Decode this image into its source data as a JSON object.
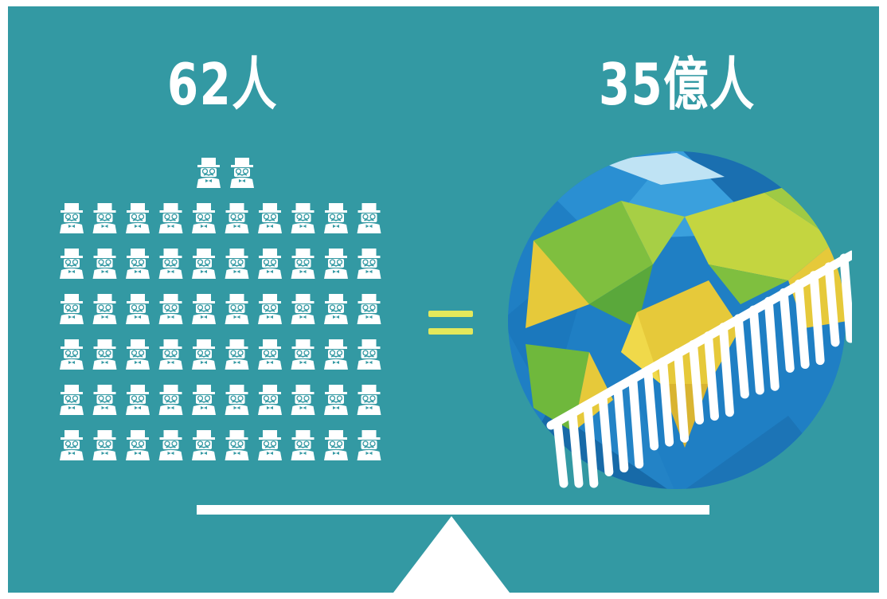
{
  "header": {
    "left_label": "62人",
    "right_label": "35億人"
  },
  "people_icons": {
    "icon": "gentleman-top-hat-icon",
    "count": 62,
    "top_row_count": 2,
    "grid_columns": 10,
    "grid_rows": 6
  },
  "equals_sign": {
    "icon": "equals-icon"
  },
  "globe": {
    "icon": "low-poly-globe-icon",
    "overlay_icon": "hand-drawn-hatch-icon"
  },
  "scale": {
    "icon": "balance-scale-icon"
  },
  "colors": {
    "background": "#3399a3",
    "foreground": "#ffffff",
    "equals": "#e3e85b",
    "ocean": "#1f7fc4",
    "land_green": "#7fbf3f",
    "land_yellow": "#e6c93a"
  }
}
